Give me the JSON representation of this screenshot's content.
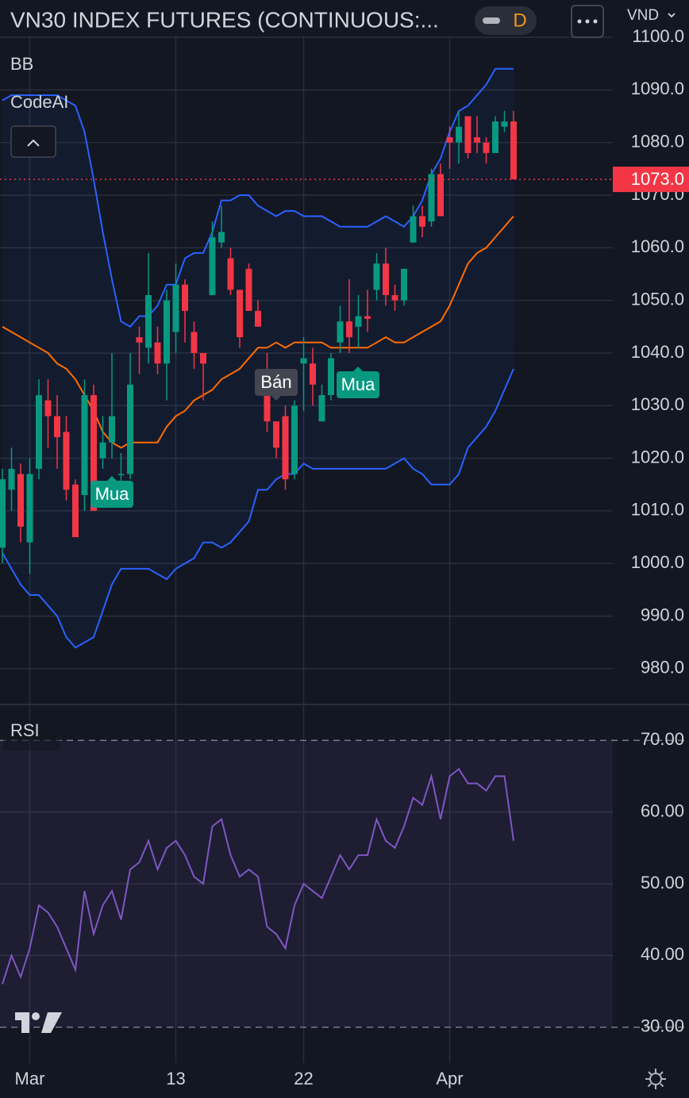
{
  "header": {
    "title": "VN30 INDEX FUTURES (CONTINUOUS:...",
    "interval": "D",
    "currency": "VND"
  },
  "indicators": [
    "BB",
    "CodeAI"
  ],
  "chart_data": [
    {
      "type": "candlestick",
      "categories": [
        null,
        null,
        null,
        "Mar",
        null,
        null,
        null,
        null,
        null,
        null,
        null,
        null,
        null,
        null,
        null,
        null,
        null,
        null,
        null,
        "13",
        null,
        null,
        null,
        null,
        null,
        null,
        null,
        null,
        null,
        null,
        null,
        null,
        null,
        "22",
        null,
        null,
        null,
        null,
        null,
        null,
        null,
        null,
        null,
        null,
        null,
        null,
        null,
        null,
        null,
        "Apr",
        null,
        null,
        null,
        null,
        null,
        null,
        null
      ],
      "open": [
        1003,
        1014,
        1017,
        1004,
        1018,
        1031,
        1028,
        1025,
        1015,
        1013,
        1032,
        1020,
        1023,
        1017,
        1017,
        1043,
        1041,
        1042,
        1038,
        1044,
        1053,
        1044,
        1040,
        1051,
        1061,
        1058,
        1052,
        1056,
        1048,
        1036,
        1027,
        1028,
        1017,
        1038,
        1038,
        1027,
        1032,
        1042,
        1046,
        1045,
        1047,
        1052,
        1057,
        1051,
        1050,
        1061,
        1066,
        1065,
        1074,
        1081,
        1080,
        1085,
        1081,
        1080,
        1078,
        1083,
        1084
      ],
      "high": [
        1018,
        1022,
        1019,
        1020,
        1035,
        1035,
        1032,
        1028,
        1016,
        1035,
        1034,
        1028,
        1040,
        1021,
        1040,
        1045,
        1059,
        1045,
        1052,
        1057,
        1054,
        1046,
        1040,
        1065,
        1068,
        1060,
        1052,
        1057,
        1050,
        1040,
        1027,
        1030,
        1031,
        1043,
        1041,
        1034,
        1040,
        1049,
        1054,
        1051,
        1052,
        1059,
        1060,
        1053,
        1056,
        1068,
        1068,
        1075,
        1076,
        1083,
        1086,
        1085,
        1085,
        1081,
        1085,
        1086,
        1086
      ],
      "low": [
        1000,
        1010,
        1004,
        998,
        1016,
        1022,
        1018,
        1012,
        1005,
        1010,
        1010,
        1018,
        1020,
        1014,
        1016,
        1036,
        1038,
        1036,
        1031,
        1040,
        1042,
        1037,
        1031,
        1051,
        1060,
        1051,
        1041,
        1048,
        1045,
        1025,
        1020,
        1014,
        1016,
        1029,
        1030,
        1027,
        1031,
        1040,
        1040,
        1041,
        1044,
        1050,
        1049,
        1048,
        1049,
        1061,
        1062,
        1064,
        1066,
        1075,
        1076,
        1077,
        1078,
        1076,
        1078,
        1082,
        1073
      ],
      "close": [
        1016,
        1018,
        1007,
        1017,
        1032,
        1028,
        1024,
        1014,
        1005,
        1032,
        1010,
        1023,
        1028,
        1017,
        1034,
        1042,
        1051,
        1038,
        1050,
        1053,
        1048,
        1040,
        1038,
        1062,
        1063,
        1052,
        1043,
        1048,
        1045,
        1027,
        1022,
        1016,
        1030,
        1039,
        1034,
        1032,
        1039,
        1046,
        1043,
        1047,
        1046.5,
        1057,
        1051,
        1050,
        1056,
        1066,
        1064,
        1074,
        1066,
        1080,
        1083,
        1078,
        1080,
        1078,
        1084,
        1084,
        1073
      ],
      "up_color": "#089981",
      "down_color": "#f23645",
      "series": [
        {
          "color": "#2962ff",
          "values": [
            1088,
            1089,
            1089,
            1089,
            1089,
            1089,
            1089,
            1088,
            1087,
            1082,
            1073,
            1063,
            1054,
            1046,
            1045,
            1047,
            1047,
            1049,
            1053,
            1053,
            1058,
            1059,
            1059,
            1063,
            1069,
            1069,
            1070,
            1070,
            1068,
            1067,
            1066,
            1067,
            1067,
            1066,
            1066,
            1066,
            1065,
            1064,
            1064,
            1064,
            1064,
            1065,
            1066,
            1065,
            1064,
            1066,
            1069,
            1074,
            1077,
            1082,
            1086,
            1087,
            1089,
            1091,
            1094,
            1094,
            1094
          ]
        },
        {
          "color": "#ff6d00",
          "values": [
            1045,
            1044,
            1043,
            1042,
            1041,
            1040,
            1038,
            1037,
            1035,
            1032,
            1029,
            1025,
            1023,
            1022,
            1023,
            1023,
            1023,
            1023,
            1026,
            1028,
            1029,
            1031,
            1032,
            1033,
            1035,
            1036,
            1037,
            1039,
            1041,
            1041,
            1042,
            1041,
            1042,
            1042,
            1042,
            1042,
            1041,
            1041,
            1041,
            1041,
            1041,
            1042,
            1043,
            1042,
            1042,
            1043,
            1044,
            1045,
            1046,
            1049,
            1053,
            1057,
            1059,
            1060,
            1062,
            1064,
            1066
          ]
        },
        {
          "color": "#2962ff",
          "values": [
            1002,
            999,
            996,
            994,
            994,
            992,
            990,
            986,
            984,
            985,
            986,
            991,
            996,
            999,
            999,
            999,
            999,
            998,
            997,
            999,
            1000,
            1001,
            1004,
            1004,
            1003,
            1004,
            1006,
            1008,
            1014,
            1014,
            1016,
            1017,
            1017,
            1019,
            1018,
            1018,
            1018,
            1018,
            1018,
            1018,
            1018,
            1018,
            1018,
            1019,
            1020,
            1018,
            1017,
            1015,
            1015,
            1015,
            1017,
            1022,
            1024,
            1026,
            1029,
            1033,
            1037
          ]
        }
      ],
      "annotations": [
        "Mua",
        "Bán",
        "Mua"
      ],
      "last_price_label": "1073.0",
      "ylim": [
        973.2,
        1100.3
      ],
      "yticks": [
        {
          "value": 980,
          "label": "980.0"
        },
        {
          "value": 990,
          "label": "990.0"
        },
        {
          "value": 1000,
          "label": "1000.0"
        },
        {
          "value": 1010,
          "label": "1010.0"
        },
        {
          "value": 1020,
          "label": "1020.0"
        },
        {
          "value": 1030,
          "label": "1030.0"
        },
        {
          "value": 1040,
          "label": "1040.0"
        },
        {
          "value": 1050,
          "label": "1050.0"
        },
        {
          "value": 1060,
          "label": "1060.0"
        },
        {
          "value": 1070,
          "label": "1070.0"
        },
        {
          "value": 1080,
          "label": "1080.0"
        },
        {
          "value": 1090,
          "label": "1090.0"
        },
        {
          "value": 1100,
          "label": "1100.0"
        }
      ],
      "grid": true
    },
    {
      "type": "line",
      "title": "RSI",
      "color": "#7e57c2",
      "values": [
        36,
        40,
        37,
        41,
        47,
        46,
        44,
        41,
        38,
        49,
        43,
        47,
        49,
        45,
        52,
        53,
        56,
        52,
        55,
        56,
        54,
        51,
        50,
        58,
        59,
        54,
        51,
        52,
        51,
        44,
        43,
        41,
        47,
        50,
        49,
        48,
        51,
        54,
        52,
        54,
        54,
        59,
        56,
        55,
        58,
        62,
        61,
        65,
        59,
        65,
        66,
        64,
        64,
        63,
        65,
        65,
        56
      ],
      "ylim": [
        25,
        75
      ],
      "yticks": [
        {
          "value": 30,
          "label": "30.00"
        },
        {
          "value": 40,
          "label": "40.00"
        },
        {
          "value": 50,
          "label": "50.00"
        },
        {
          "value": 60,
          "label": "60.00"
        },
        {
          "value": 70,
          "label": "70.00"
        }
      ],
      "grid": true
    }
  ]
}
